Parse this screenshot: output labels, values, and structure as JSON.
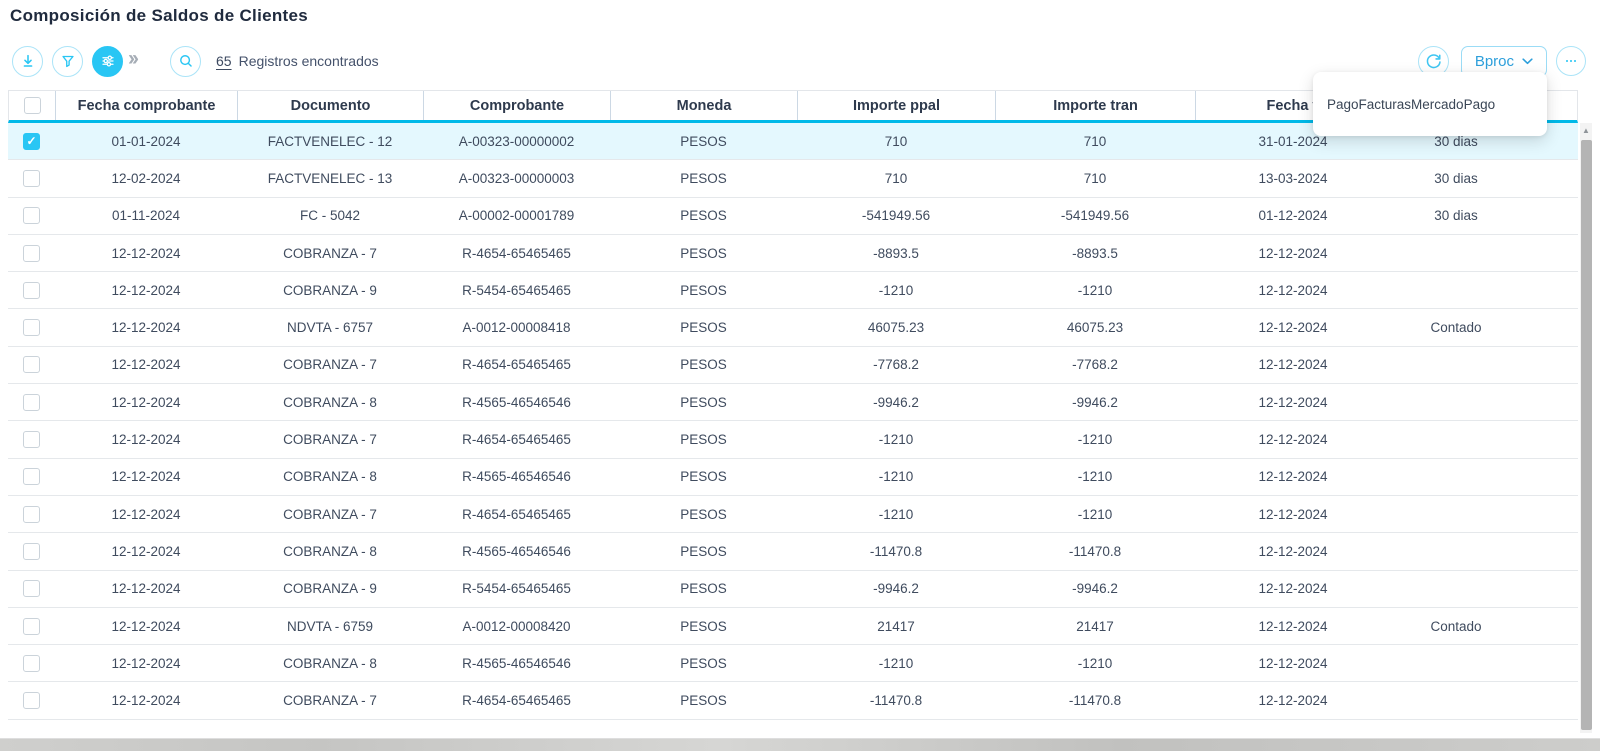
{
  "page": {
    "title": "Composición de Saldos de Clientes"
  },
  "colors": {
    "accent": "#29c6f4",
    "header_underline": "#00b9e8",
    "selected_row": "#e4f8fe",
    "button_blue": "#2d9fdb"
  },
  "toolbar": {
    "records_count": "65",
    "records_label": "Registros encontrados",
    "chevrons": "››",
    "bproc_label": "Bproc",
    "dropdown_item": "PagoFacturasMercadoPago",
    "icons": {
      "export": "download-icon",
      "filter": "funnel-icon",
      "columns": "sliders-icon",
      "search": "magnifier-icon",
      "refresh": "circular-arrow-icon",
      "more": "ellipsis-icon"
    }
  },
  "scrollbar": {
    "up_glyph": "▲"
  },
  "table": {
    "columns": [
      "Fecha comprobante",
      "Documento",
      "Comprobante",
      "Moneda",
      "Importe ppal",
      "Importe tran",
      "Fecha v",
      ""
    ],
    "rows": [
      {
        "selected": true,
        "cells": [
          "01-01-2024",
          "FACTVENELEC - 12",
          "A-00323-00000002",
          "PESOS",
          "710",
          "710",
          "31-01-2024",
          "30 dias"
        ]
      },
      {
        "selected": false,
        "cells": [
          "12-02-2024",
          "FACTVENELEC - 13",
          "A-00323-00000003",
          "PESOS",
          "710",
          "710",
          "13-03-2024",
          "30 dias"
        ]
      },
      {
        "selected": false,
        "cells": [
          "01-11-2024",
          "FC - 5042",
          "A-00002-00001789",
          "PESOS",
          "-541949.56",
          "-541949.56",
          "01-12-2024",
          "30 dias"
        ]
      },
      {
        "selected": false,
        "cells": [
          "12-12-2024",
          "COBRANZA - 7",
          "R-4654-65465465",
          "PESOS",
          "-8893.5",
          "-8893.5",
          "12-12-2024",
          ""
        ]
      },
      {
        "selected": false,
        "cells": [
          "12-12-2024",
          "COBRANZA - 9",
          "R-5454-65465465",
          "PESOS",
          "-1210",
          "-1210",
          "12-12-2024",
          ""
        ]
      },
      {
        "selected": false,
        "cells": [
          "12-12-2024",
          "NDVTA - 6757",
          "A-0012-00008418",
          "PESOS",
          "46075.23",
          "46075.23",
          "12-12-2024",
          "Contado"
        ]
      },
      {
        "selected": false,
        "cells": [
          "12-12-2024",
          "COBRANZA - 7",
          "R-4654-65465465",
          "PESOS",
          "-7768.2",
          "-7768.2",
          "12-12-2024",
          ""
        ]
      },
      {
        "selected": false,
        "cells": [
          "12-12-2024",
          "COBRANZA - 8",
          "R-4565-46546546",
          "PESOS",
          "-9946.2",
          "-9946.2",
          "12-12-2024",
          ""
        ]
      },
      {
        "selected": false,
        "cells": [
          "12-12-2024",
          "COBRANZA - 7",
          "R-4654-65465465",
          "PESOS",
          "-1210",
          "-1210",
          "12-12-2024",
          ""
        ]
      },
      {
        "selected": false,
        "cells": [
          "12-12-2024",
          "COBRANZA - 8",
          "R-4565-46546546",
          "PESOS",
          "-1210",
          "-1210",
          "12-12-2024",
          ""
        ]
      },
      {
        "selected": false,
        "cells": [
          "12-12-2024",
          "COBRANZA - 7",
          "R-4654-65465465",
          "PESOS",
          "-1210",
          "-1210",
          "12-12-2024",
          ""
        ]
      },
      {
        "selected": false,
        "cells": [
          "12-12-2024",
          "COBRANZA - 8",
          "R-4565-46546546",
          "PESOS",
          "-11470.8",
          "-11470.8",
          "12-12-2024",
          ""
        ]
      },
      {
        "selected": false,
        "cells": [
          "12-12-2024",
          "COBRANZA - 9",
          "R-5454-65465465",
          "PESOS",
          "-9946.2",
          "-9946.2",
          "12-12-2024",
          ""
        ]
      },
      {
        "selected": false,
        "cells": [
          "12-12-2024",
          "NDVTA - 6759",
          "A-0012-00008420",
          "PESOS",
          "21417",
          "21417",
          "12-12-2024",
          "Contado"
        ]
      },
      {
        "selected": false,
        "cells": [
          "12-12-2024",
          "COBRANZA - 8",
          "R-4565-46546546",
          "PESOS",
          "-1210",
          "-1210",
          "12-12-2024",
          ""
        ]
      },
      {
        "selected": false,
        "cells": [
          "12-12-2024",
          "COBRANZA - 7",
          "R-4654-65465465",
          "PESOS",
          "-11470.8",
          "-11470.8",
          "12-12-2024",
          ""
        ]
      }
    ]
  }
}
